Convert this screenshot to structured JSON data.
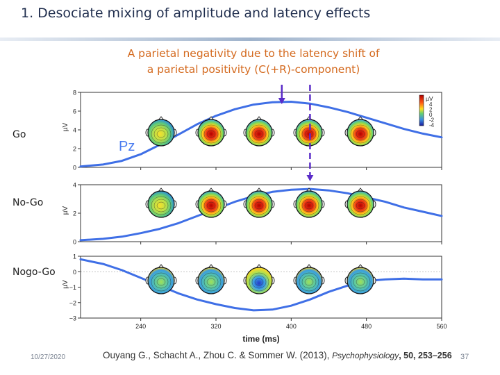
{
  "slide": {
    "title": "1.   Desociate mixing of amplitude and latency effects",
    "subtitle_line1": "A parietal negativity due to the latency shift of",
    "subtitle_line2": "a parietal positivity (C(+R)-component)",
    "row_labels": [
      "Go",
      "No-Go",
      "Nogo-Go"
    ],
    "date": "10/27/2020",
    "page_number": "37",
    "citation": {
      "authors": "Ouyang G., Schacht A., Zhou C. & Sommer W. (2013), ",
      "journal": "Psychophysiology",
      "volume": ", 50, 253–256"
    }
  },
  "chart_data": {
    "type": "line",
    "title": "",
    "xlabel": "time (ms)",
    "ylabel": "µV",
    "x_ticks": [
      240,
      320,
      400,
      480,
      560
    ],
    "xlim": [
      176,
      560
    ],
    "electrode_label": "Pz",
    "colorbar_label": "µV",
    "colorbar_ticks": [
      "4",
      "2",
      "0",
      "-2",
      "-4"
    ],
    "panels": [
      {
        "name": "Go",
        "ylim": [
          0,
          8
        ],
        "y_ticks": [
          0,
          2,
          4,
          6,
          8
        ],
        "x": [
          176,
          200,
          220,
          240,
          260,
          280,
          300,
          320,
          340,
          360,
          380,
          400,
          420,
          440,
          460,
          480,
          500,
          520,
          540,
          560
        ],
        "y": [
          0.1,
          0.3,
          0.7,
          1.4,
          2.4,
          3.5,
          4.6,
          5.5,
          6.2,
          6.7,
          6.95,
          7.0,
          6.8,
          6.4,
          5.9,
          5.3,
          4.7,
          4.1,
          3.6,
          3.2
        ],
        "topomaps": 5
      },
      {
        "name": "No-Go",
        "ylim": [
          0,
          4
        ],
        "y_ticks": [
          0,
          2,
          4
        ],
        "x": [
          176,
          200,
          220,
          240,
          260,
          280,
          300,
          320,
          340,
          360,
          380,
          400,
          420,
          440,
          460,
          480,
          500,
          520,
          540,
          560
        ],
        "y": [
          0.1,
          0.2,
          0.35,
          0.6,
          0.9,
          1.3,
          1.8,
          2.3,
          2.8,
          3.2,
          3.5,
          3.65,
          3.7,
          3.6,
          3.4,
          3.1,
          2.8,
          2.4,
          2.1,
          1.8
        ],
        "topomaps": 5
      },
      {
        "name": "Nogo-Go",
        "ylim": [
          -3,
          1
        ],
        "y_ticks": [
          -3,
          -2,
          -1,
          0,
          1
        ],
        "x": [
          176,
          200,
          220,
          240,
          260,
          280,
          300,
          320,
          340,
          360,
          380,
          400,
          420,
          440,
          460,
          480,
          500,
          520,
          540,
          560
        ],
        "y": [
          0.8,
          0.5,
          0.1,
          -0.4,
          -0.9,
          -1.4,
          -1.8,
          -2.1,
          -2.35,
          -2.5,
          -2.45,
          -2.2,
          -1.8,
          -1.3,
          -0.9,
          -0.6,
          -0.5,
          -0.45,
          -0.5,
          -0.5
        ],
        "topomaps": 5
      }
    ],
    "markers": [
      {
        "label": "peak-go",
        "x": 390
      },
      {
        "label": "peak-nogo",
        "x": 420
      }
    ]
  }
}
